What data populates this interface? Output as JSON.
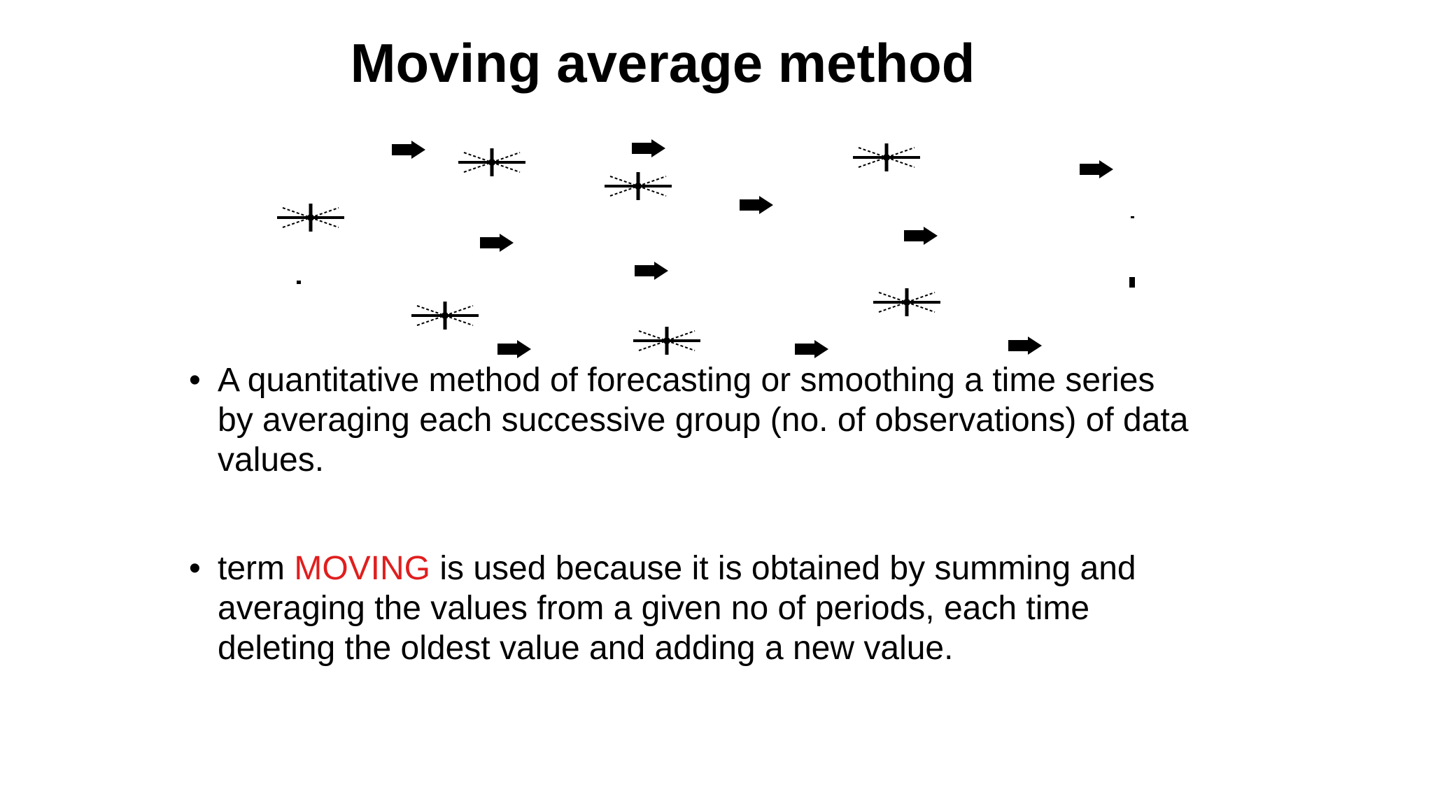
{
  "header": {
    "title": "Moving average method"
  },
  "bullets": [
    {
      "parts": [
        " A quantitative method of forecasting or smoothing a time series by averaging each successive group (no. of observations) of data values."
      ]
    },
    {
      "parts": [
        "term ",
        "MOVING",
        " is used because it is obtained by summing and averaging the values from a given no of periods, each time deleting the oldest value and adding a new value."
      ]
    }
  ]
}
